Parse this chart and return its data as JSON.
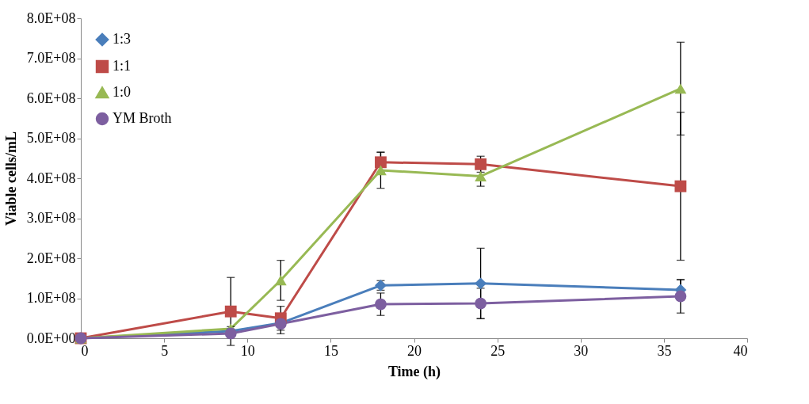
{
  "chart_data": {
    "type": "line",
    "xlabel": "Time (h)",
    "ylabel": "Viable cells/mL",
    "x": [
      0,
      9,
      12,
      18,
      24,
      36
    ],
    "xlim": [
      0,
      40
    ],
    "xticks": [
      0,
      5,
      10,
      15,
      20,
      25,
      30,
      35,
      40
    ],
    "ylim": [
      0,
      800000000
    ],
    "yticks": [
      {
        "value": 0,
        "label": "0.0E+00"
      },
      {
        "value": 100000000,
        "label": "1.0E+08"
      },
      {
        "value": 200000000,
        "label": "2.0E+08"
      },
      {
        "value": 300000000,
        "label": "3.0E+08"
      },
      {
        "value": 400000000,
        "label": "4.0E+08"
      },
      {
        "value": 500000000,
        "label": "5.0E+08"
      },
      {
        "value": 600000000,
        "label": "6.0E+08"
      },
      {
        "value": 700000000,
        "label": "7.0E+08"
      },
      {
        "value": 800000000,
        "label": "8.0E+08"
      }
    ],
    "legend": "top left",
    "line_style": "solid",
    "series": [
      {
        "name": "1:3",
        "color": "#4a7ebb",
        "marker": "diamond",
        "values": [
          0,
          18000000,
          38000000,
          132000000,
          137000000,
          121000000
        ],
        "errors": [
          null,
          5000000,
          null,
          12000000,
          88000000,
          25000000
        ]
      },
      {
        "name": "1:1",
        "color": "#be4b48",
        "marker": "square",
        "values": [
          0,
          67000000,
          50000000,
          440000000,
          435000000,
          380000000
        ],
        "errors": [
          null,
          85000000,
          30000000,
          25000000,
          20000000,
          185000000
        ]
      },
      {
        "name": "1:0",
        "color": "#98b954",
        "marker": "triangle",
        "values": [
          0,
          24000000,
          145000000,
          420000000,
          405000000,
          624000000
        ],
        "errors": [
          null,
          5000000,
          50000000,
          45000000,
          25000000,
          116000000
        ]
      },
      {
        "name": "YM Broth",
        "color": "#7d5fa0",
        "marker": "circle",
        "values": [
          0,
          12000000,
          36000000,
          85000000,
          87000000,
          105000000
        ],
        "errors": [
          null,
          3000000,
          25000000,
          28000000,
          38000000,
          42000000
        ]
      }
    ]
  }
}
